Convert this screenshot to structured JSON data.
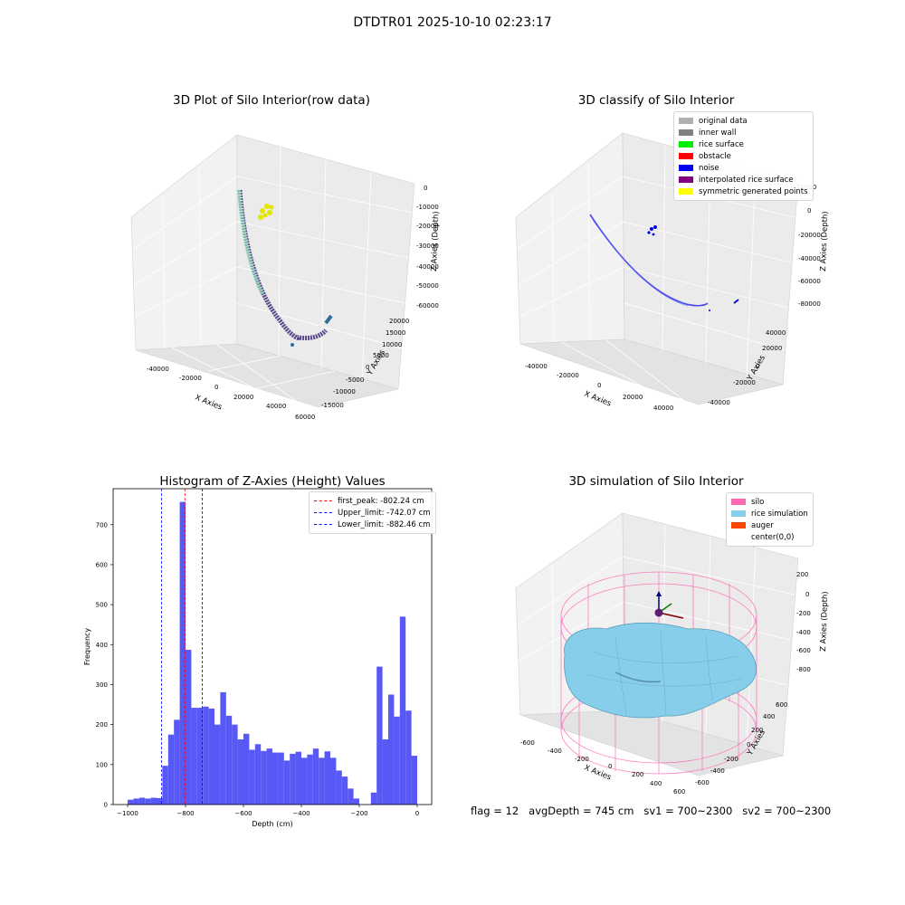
{
  "figure": {
    "suptitle": "DTDTR01 2025-10-10 02:23:17"
  },
  "panel_raw": {
    "title": "3D Plot of Silo Interior(row data)",
    "xlabel": "X Axies",
    "ylabel": "Y Axies",
    "zlabel": "Z Axies (Depth)",
    "xticks": [
      "-40000",
      "-20000",
      "0",
      "20000",
      "40000",
      "60000"
    ],
    "yticks": [
      "-15000",
      "-10000",
      "-5000",
      "0",
      "5000",
      "10000",
      "15000",
      "20000"
    ],
    "zticks": [
      "0",
      "-10000",
      "-20000",
      "-30000",
      "-40000",
      "-50000",
      "-60000"
    ]
  },
  "panel_classify": {
    "title": "3D classify of Silo Interior",
    "xlabel": "X Axies",
    "ylabel": "Y Axies",
    "zlabel": "Z Axies (Depth)",
    "xticks": [
      "-40000",
      "-20000",
      "0",
      "20000",
      "40000"
    ],
    "yticks": [
      "-40000",
      "-20000",
      "0",
      "20000",
      "40000"
    ],
    "zticks": [
      "20000",
      "0",
      "-20000",
      "-40000",
      "-60000",
      "-80000"
    ],
    "legend": [
      {
        "label": "original data",
        "color": "#b0b0b0"
      },
      {
        "label": "inner wall",
        "color": "#808080"
      },
      {
        "label": "rice surface",
        "color": "#00ee00"
      },
      {
        "label": "obstacle",
        "color": "#ff0000"
      },
      {
        "label": "noise",
        "color": "#0000ee"
      },
      {
        "label": "interpolated rice surface",
        "color": "#800080"
      },
      {
        "label": "symmetric generated points",
        "color": "#ffff00"
      }
    ]
  },
  "panel_sim": {
    "title": "3D simulation of Silo Interior",
    "xlabel": "X Axies",
    "ylabel": "Y Axies",
    "zlabel": "Z Axies (Depth)",
    "xticks": [
      "-600",
      "-400",
      "-200",
      "0",
      "200",
      "400",
      "600"
    ],
    "yticks": [
      "-600",
      "-400",
      "-200",
      "0",
      "200",
      "400",
      "600"
    ],
    "zticks": [
      "200",
      "0",
      "-200",
      "-400",
      "-600",
      "-800"
    ],
    "legend": [
      {
        "label": "silo",
        "color": "#ff69b4"
      },
      {
        "label": "rice simulation",
        "color": "#87ceeb"
      },
      {
        "label": "auger",
        "color": "#ff4500"
      },
      {
        "label": "center(0,0)",
        "color": "#ffffff"
      }
    ],
    "colors": {
      "silo": "#ff69b4",
      "rice": "#87ceeb",
      "rice_edge": "#5a9fb8"
    }
  },
  "status": {
    "flag": "flag = 12",
    "avg_depth": "avgDepth = 745 cm",
    "sv1": "sv1 = 700~2300",
    "sv2": "sv2 = 700~2300"
  },
  "chart_data": [
    {
      "type": "histogram",
      "title": "Histogram of Z-Axies (Height) Values",
      "xlabel": "Depth (cm)",
      "ylabel": "Frequency",
      "xlim": [
        -1050,
        50
      ],
      "ylim": [
        0,
        790
      ],
      "xticks": [
        -1000,
        -800,
        -600,
        -400,
        -200,
        0
      ],
      "yticks": [
        0,
        100,
        200,
        300,
        400,
        500,
        600,
        700
      ],
      "bar_color": "#4f4ff5",
      "bins": [
        {
          "x0": -1000,
          "x1": -980,
          "count": 12
        },
        {
          "x0": -980,
          "x1": -960,
          "count": 15
        },
        {
          "x0": -960,
          "x1": -940,
          "count": 17
        },
        {
          "x0": -940,
          "x1": -920,
          "count": 15
        },
        {
          "x0": -920,
          "x1": -900,
          "count": 17
        },
        {
          "x0": -900,
          "x1": -880,
          "count": 16
        },
        {
          "x0": -880,
          "x1": -860,
          "count": 97
        },
        {
          "x0": -860,
          "x1": -840,
          "count": 175
        },
        {
          "x0": -840,
          "x1": -820,
          "count": 212
        },
        {
          "x0": -820,
          "x1": -800,
          "count": 757
        },
        {
          "x0": -800,
          "x1": -780,
          "count": 387
        },
        {
          "x0": -780,
          "x1": -760,
          "count": 242
        },
        {
          "x0": -760,
          "x1": -740,
          "count": 242
        },
        {
          "x0": -740,
          "x1": -720,
          "count": 245
        },
        {
          "x0": -720,
          "x1": -700,
          "count": 240
        },
        {
          "x0": -700,
          "x1": -680,
          "count": 200
        },
        {
          "x0": -680,
          "x1": -660,
          "count": 281
        },
        {
          "x0": -660,
          "x1": -640,
          "count": 222
        },
        {
          "x0": -640,
          "x1": -620,
          "count": 200
        },
        {
          "x0": -620,
          "x1": -600,
          "count": 163
        },
        {
          "x0": -600,
          "x1": -580,
          "count": 177
        },
        {
          "x0": -580,
          "x1": -560,
          "count": 137
        },
        {
          "x0": -560,
          "x1": -540,
          "count": 151
        },
        {
          "x0": -540,
          "x1": -520,
          "count": 134
        },
        {
          "x0": -520,
          "x1": -500,
          "count": 140
        },
        {
          "x0": -500,
          "x1": -480,
          "count": 130
        },
        {
          "x0": -480,
          "x1": -460,
          "count": 130
        },
        {
          "x0": -460,
          "x1": -440,
          "count": 110
        },
        {
          "x0": -440,
          "x1": -420,
          "count": 127
        },
        {
          "x0": -420,
          "x1": -400,
          "count": 132
        },
        {
          "x0": -400,
          "x1": -380,
          "count": 117
        },
        {
          "x0": -380,
          "x1": -360,
          "count": 125
        },
        {
          "x0": -360,
          "x1": -340,
          "count": 140
        },
        {
          "x0": -340,
          "x1": -320,
          "count": 117
        },
        {
          "x0": -320,
          "x1": -300,
          "count": 133
        },
        {
          "x0": -300,
          "x1": -280,
          "count": 117
        },
        {
          "x0": -280,
          "x1": -260,
          "count": 85
        },
        {
          "x0": -260,
          "x1": -240,
          "count": 70
        },
        {
          "x0": -240,
          "x1": -220,
          "count": 40
        },
        {
          "x0": -220,
          "x1": -200,
          "count": 15
        },
        {
          "x0": -160,
          "x1": -140,
          "count": 30
        },
        {
          "x0": -140,
          "x1": -120,
          "count": 345
        },
        {
          "x0": -120,
          "x1": -100,
          "count": 163
        },
        {
          "x0": -100,
          "x1": -80,
          "count": 275
        },
        {
          "x0": -80,
          "x1": -60,
          "count": 220
        },
        {
          "x0": -60,
          "x1": -40,
          "count": 470
        },
        {
          "x0": -40,
          "x1": -20,
          "count": 235
        },
        {
          "x0": -20,
          "x1": 0,
          "count": 122
        }
      ],
      "vlines": [
        {
          "label": "first_peak: -802.24 cm",
          "x": -802.24,
          "color": "#ff0000"
        },
        {
          "label": "Upper_limit: -742.07 cm",
          "x": -742.07,
          "color": "#0000ff"
        },
        {
          "label": "Lower_limit: -882.46 cm",
          "x": -882.46,
          "color": "#0000ff"
        }
      ],
      "legend_position": "upper right"
    }
  ]
}
